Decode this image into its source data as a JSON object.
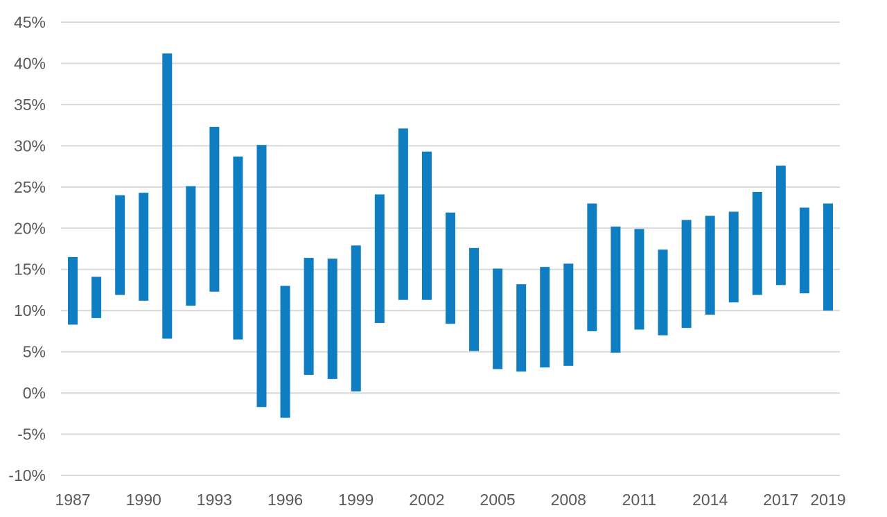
{
  "chart_data": {
    "type": "bar",
    "subtype": "floating-range",
    "title": "",
    "xlabel": "",
    "ylabel": "",
    "ylim": [
      -10,
      45
    ],
    "yticks": [
      -10,
      -5,
      0,
      5,
      10,
      15,
      20,
      25,
      30,
      35,
      40,
      45
    ],
    "ytick_labels": [
      "-10%",
      "-5%",
      "0%",
      "5%",
      "10%",
      "15%",
      "20%",
      "25%",
      "30%",
      "35%",
      "40%",
      "45%"
    ],
    "xtick_labels": [
      "1987",
      "1990",
      "1993",
      "1996",
      "1999",
      "2002",
      "2005",
      "2008",
      "2011",
      "2014",
      "2017",
      "2019"
    ],
    "grid": true,
    "legend": "none",
    "bar_color": "#0f7dc2",
    "grid_color": "#d9d9d9",
    "categories": [
      "1987",
      "1988",
      "1989",
      "1990",
      "1991",
      "1992",
      "1993",
      "1994",
      "1995",
      "1996",
      "1997",
      "1998",
      "1999",
      "2000",
      "2001",
      "2002",
      "2003",
      "2004",
      "2005",
      "2006",
      "2007",
      "2008",
      "2009",
      "2010",
      "2011",
      "2012",
      "2013",
      "2014",
      "2015",
      "2016",
      "2017",
      "2018",
      "2019"
    ],
    "low": [
      8.3,
      9.1,
      11.9,
      11.2,
      6.6,
      10.6,
      12.3,
      6.5,
      -1.7,
      -3.0,
      2.2,
      1.7,
      0.2,
      8.5,
      11.3,
      11.3,
      8.4,
      5.1,
      2.9,
      2.6,
      3.1,
      3.3,
      7.5,
      4.9,
      7.7,
      7.0,
      7.9,
      9.5,
      11.0,
      11.9,
      13.1,
      12.1,
      10.0
    ],
    "high": [
      16.5,
      14.1,
      24.0,
      24.3,
      41.2,
      25.1,
      32.3,
      28.7,
      30.1,
      13.0,
      16.4,
      16.3,
      17.9,
      24.1,
      32.1,
      29.3,
      21.9,
      17.6,
      15.1,
      13.2,
      15.3,
      15.7,
      23.0,
      20.2,
      19.9,
      17.4,
      21.0,
      21.5,
      22.0,
      24.4,
      27.6,
      22.5,
      23.0
    ]
  }
}
